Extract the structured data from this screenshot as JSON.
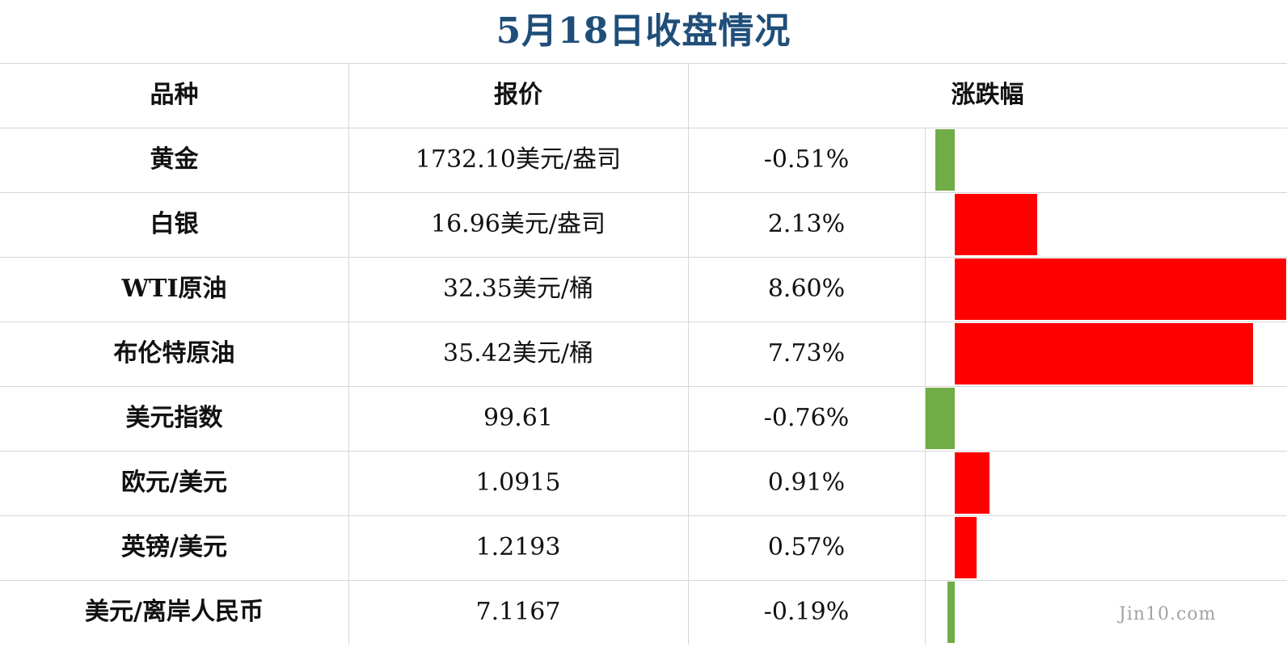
{
  "title": "5月18日收盘情况",
  "headers": {
    "name": "品种",
    "price": "报价",
    "change": "涨跌幅"
  },
  "watermark": "Jin10.com",
  "colors": {
    "title": "#1f4e79",
    "up": "#ff0000",
    "down": "#70ad47",
    "grid": "#d6d6d6",
    "text": "#111111"
  },
  "rows": [
    {
      "name": "黄金",
      "price": "1732.10美元/盎司",
      "change": "-0.51%",
      "value": -0.51
    },
    {
      "name": "白银",
      "price": "16.96美元/盎司",
      "change": "2.13%",
      "value": 2.13
    },
    {
      "name": "WTI原油",
      "price": "32.35美元/桶",
      "change": "8.60%",
      "value": 8.6
    },
    {
      "name": "布伦特原油",
      "price": "35.42美元/桶",
      "change": "7.73%",
      "value": 7.73
    },
    {
      "name": "美元指数",
      "price": "99.61",
      "change": "-0.76%",
      "value": -0.76
    },
    {
      "name": "欧元/美元",
      "price": "1.0915",
      "change": "0.91%",
      "value": 0.91
    },
    {
      "name": "英镑/美元",
      "price": "1.2193",
      "change": "0.57%",
      "value": 0.57
    },
    {
      "name": "美元/离岸人民币",
      "price": "7.1167",
      "change": "-0.19%",
      "value": -0.19
    }
  ],
  "chart_data": {
    "type": "bar",
    "categories": [
      "黄金",
      "白银",
      "WTI原油",
      "布伦特原油",
      "美元指数",
      "欧元/美元",
      "英镑/美元",
      "美元/离岸人民币"
    ],
    "values": [
      -0.51,
      2.13,
      8.6,
      7.73,
      -0.76,
      0.91,
      0.57,
      -0.19
    ]
  }
}
